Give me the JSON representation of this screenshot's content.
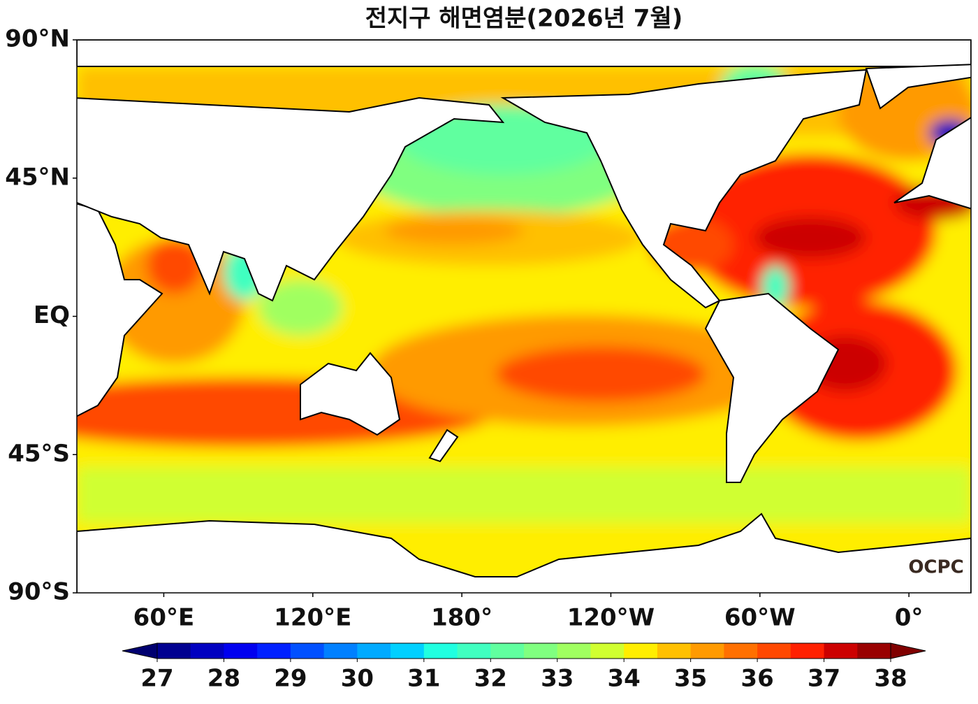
{
  "title": "전지구 해면염분(2026년 7월)",
  "map": {
    "lonlim": [
      25,
      385
    ],
    "latlim": [
      -90,
      90
    ],
    "lat_ticks": [
      {
        "value": 90,
        "label": "90°N"
      },
      {
        "value": 45,
        "label": "45°N"
      },
      {
        "value": 0,
        "label": "EQ"
      },
      {
        "value": -45,
        "label": "45°S"
      },
      {
        "value": -90,
        "label": "90°S"
      }
    ],
    "lon_ticks": [
      {
        "value": 60,
        "label": "60°E"
      },
      {
        "value": 120,
        "label": "120°E"
      },
      {
        "value": 180,
        "label": "180°"
      },
      {
        "value": 240,
        "label": "120°W"
      },
      {
        "value": 300,
        "label": "60°W"
      },
      {
        "value": 360,
        "label": "0°"
      }
    ]
  },
  "colorbar": {
    "lim": [
      27,
      38
    ],
    "ticks": [
      27,
      28,
      29,
      30,
      31,
      32,
      33,
      34,
      35,
      36,
      37,
      38
    ],
    "colors": [
      "#000090",
      "#0000c0",
      "#0000ef",
      "#0020ff",
      "#0050ff",
      "#0080ff",
      "#00aaff",
      "#00d0ff",
      "#20ffe0",
      "#40ffc0",
      "#60ff9f",
      "#80ff80",
      "#a0ff60",
      "#d0ff30",
      "#ffee00",
      "#ffc000",
      "#ff9a00",
      "#ff7000",
      "#ff4800",
      "#ff2000",
      "#cc0000",
      "#990000"
    ],
    "under_color": "#000070",
    "over_color": "#800000"
  },
  "logo": "OCPC"
}
